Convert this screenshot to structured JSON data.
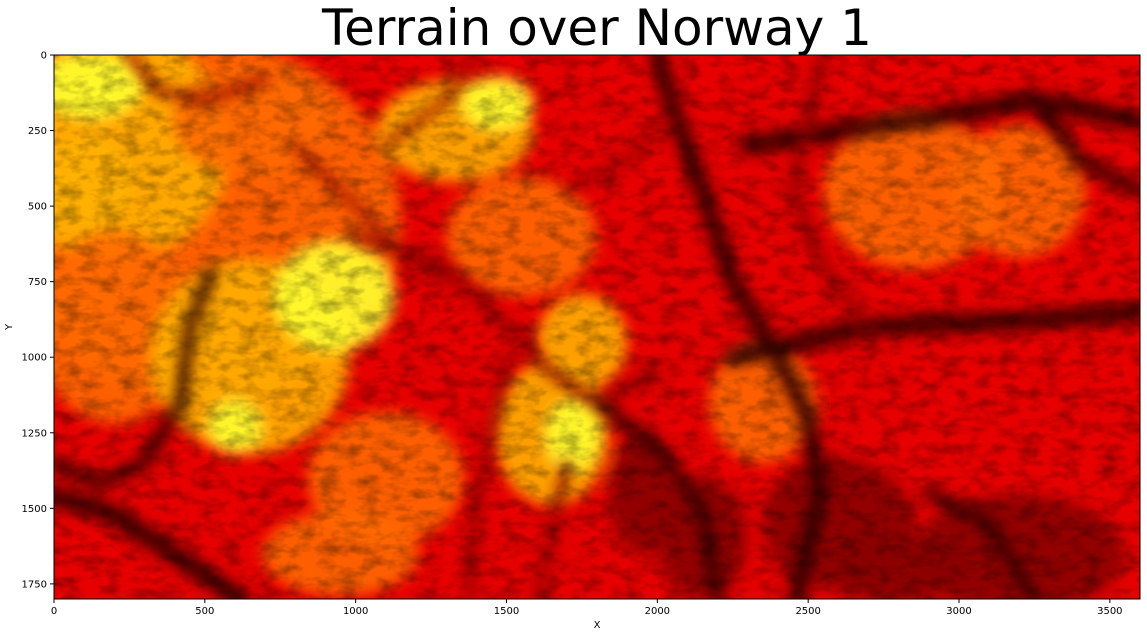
{
  "chart_data": {
    "type": "heatmap",
    "title": "Terrain over Norway 1",
    "xlabel": "X",
    "ylabel": "Y",
    "xlim": [
      0,
      3600
    ],
    "ylim": [
      1800,
      0
    ],
    "y_axis_inverted": true,
    "colormap": "hot",
    "colorbar": false,
    "grid": false,
    "x_ticks": [
      0,
      500,
      1000,
      1500,
      2000,
      2500,
      3000,
      3500
    ],
    "x_tick_labels": [
      "0",
      "500",
      "1000",
      "1500",
      "2000",
      "2500",
      "3000",
      "3500"
    ],
    "y_ticks": [
      0,
      250,
      500,
      750,
      1000,
      1250,
      1500,
      1750
    ],
    "y_tick_labels": [
      "0",
      "250",
      "500",
      "750",
      "1000",
      "1250",
      "1500",
      "1750"
    ],
    "colors": {
      "low": "#300000",
      "mid_low": "#8b0000",
      "mid": "#e60000",
      "mid_high": "#ff6a00",
      "high": "#ffb000",
      "peak": "#ffff30"
    }
  }
}
